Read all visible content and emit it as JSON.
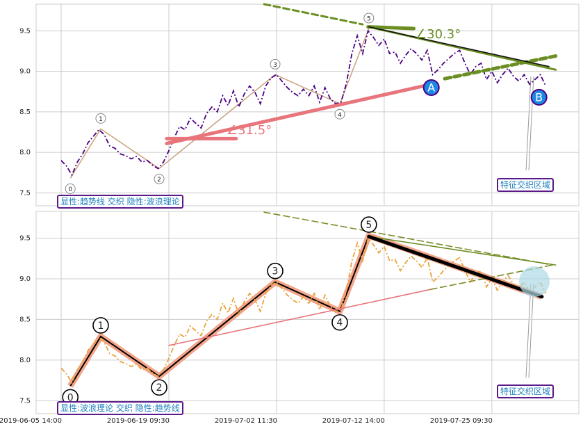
{
  "chart_data": [
    {
      "type": "line",
      "x": [
        0,
        2,
        4,
        6,
        8,
        10,
        12,
        14,
        16,
        18,
        20,
        22,
        24,
        26,
        28,
        30,
        32,
        34,
        36,
        38,
        40,
        42,
        44,
        46,
        48,
        50,
        52,
        54,
        56,
        58,
        60,
        62,
        64,
        66,
        68,
        70,
        72,
        74,
        76,
        78,
        80,
        82,
        84,
        86,
        88,
        90,
        92,
        94,
        96,
        98,
        100,
        102,
        104,
        106,
        108,
        110,
        112,
        114,
        116,
        118,
        120,
        122,
        124,
        126,
        128,
        130,
        132,
        134,
        136,
        138,
        140,
        142,
        144,
        146,
        148,
        150,
        152,
        154,
        156,
        158,
        160,
        162,
        164,
        166,
        168,
        170,
        172,
        174,
        176,
        178,
        180
      ],
      "series": [
        {
          "color": "#4b0082",
          "style": "dashdot",
          "values": [
            7.9,
            7.83,
            7.72,
            7.88,
            7.98,
            8.12,
            8.2,
            8.28,
            8.22,
            8.08,
            8.05,
            7.98,
            7.96,
            7.92,
            7.95,
            7.88,
            7.9,
            7.84,
            7.8,
            7.88,
            8.02,
            8.18,
            8.32,
            8.28,
            8.42,
            8.36,
            8.3,
            8.48,
            8.56,
            8.5,
            8.7,
            8.58,
            8.76,
            8.56,
            8.72,
            8.82,
            8.74,
            8.6,
            8.82,
            8.92,
            8.96,
            8.88,
            8.8,
            8.74,
            8.7,
            8.78,
            8.7,
            8.82,
            8.62,
            8.8,
            8.66,
            8.6,
            8.62,
            8.86,
            9.22,
            9.44,
            9.22,
            9.5,
            9.42,
            9.32,
            9.4,
            9.22,
            9.24,
            9.1,
            9.2,
            9.28,
            9.22,
            9.14,
            9.26,
            8.96,
            9.02,
            9.1,
            9.16,
            9.22,
            9.26,
            9.1,
            8.96,
            9.06,
            9.1,
            8.9,
            9.0,
            8.86,
            8.96,
            9.04,
            8.94,
            8.88,
            8.96,
            8.84,
            8.9,
            8.96,
            8.82
          ]
        }
      ],
      "xlim": [
        -9.3,
        192.3
      ],
      "ylim": [
        7.34,
        9.83
      ],
      "yticks": [
        7.5,
        {
          "value": 8,
          "label": "8.0"
        },
        8.5,
        {
          "value": 9,
          "label": "9.0"
        },
        9.5
      ],
      "grid": true,
      "waves": {
        "x": [
          3.4,
          14.7,
          36.4,
          79.5,
          103.5,
          114.3
        ],
        "values": [
          7.68,
          8.29,
          7.8,
          8.96,
          8.6,
          9.53
        ],
        "labels": [
          "0",
          "1",
          "2",
          "3",
          "4",
          "5"
        ],
        "color": "#c8a27c",
        "bold": false
      },
      "points": [
        {
          "label": "A",
          "x": 137.5,
          "value": 8.8,
          "color": "#1e88e5"
        },
        {
          "label": "B",
          "x": 177.5,
          "value": 8.68,
          "color": "#1e88e5"
        }
      ],
      "trendlines": [
        {
          "x": [
            75.4,
            112
          ],
          "values": [
            9.83,
            9.58
          ],
          "color": "#6b8e23",
          "dash": true,
          "weight": "bold"
        },
        {
          "x": [
            114,
            131
          ],
          "values": [
            9.55,
            9.53
          ],
          "color": "#6b8e23",
          "dash": false,
          "weight": "heavy"
        },
        {
          "x": [
            114.3,
            183.7
          ],
          "values": [
            9.55,
            9.02
          ],
          "color": "#6b8e23",
          "dash": false,
          "weight": "bold"
        },
        {
          "x": [
            142.5,
            183.7
          ],
          "values": [
            8.91,
            9.19
          ],
          "color": "#6b8e23",
          "dash": true,
          "weight": "heavy"
        },
        {
          "x": [
            39.2,
            137.3
          ],
          "values": [
            8.11,
            8.84
          ],
          "color": "#e8747c",
          "dash": false,
          "weight": "heavy"
        },
        {
          "x": [
            39.2,
            65
          ],
          "values": [
            8.17,
            8.17
          ],
          "color": "#e8747c",
          "dash": false,
          "weight": "heavy"
        },
        {
          "x": [
            114.3,
            181.2
          ],
          "values": [
            9.55,
            9.06
          ],
          "color": "#111111",
          "dash": false,
          "weight": "normal"
        }
      ],
      "angle_labels": [
        {
          "text": "∠30.3°",
          "color": "#6b8e23"
        },
        {
          "text": "∠31.5°",
          "color": "#e8747c"
        }
      ],
      "note": "显性:趋势线 交织 隐性:波浪理论",
      "region_label": "特征交织区域"
    },
    {
      "type": "line",
      "x": [
        0,
        2,
        4,
        6,
        8,
        10,
        12,
        14,
        16,
        18,
        20,
        22,
        24,
        26,
        28,
        30,
        32,
        34,
        36,
        38,
        40,
        42,
        44,
        46,
        48,
        50,
        52,
        54,
        56,
        58,
        60,
        62,
        64,
        66,
        68,
        70,
        72,
        74,
        76,
        78,
        80,
        82,
        84,
        86,
        88,
        90,
        92,
        94,
        96,
        98,
        100,
        102,
        104,
        106,
        108,
        110,
        112,
        114,
        116,
        118,
        120,
        122,
        124,
        126,
        128,
        130,
        132,
        134,
        136,
        138,
        140,
        142,
        144,
        146,
        148,
        150,
        152,
        154,
        156,
        158,
        160,
        162,
        164,
        166,
        168,
        170,
        172,
        174,
        176,
        178,
        180
      ],
      "series": [
        {
          "color": "#e8a33c",
          "style": "dashdot",
          "values": [
            7.9,
            7.83,
            7.72,
            7.88,
            7.98,
            8.12,
            8.2,
            8.28,
            8.22,
            8.08,
            8.05,
            7.98,
            7.96,
            7.92,
            7.95,
            7.88,
            7.9,
            7.84,
            7.8,
            7.88,
            8.02,
            8.18,
            8.32,
            8.28,
            8.42,
            8.36,
            8.3,
            8.48,
            8.56,
            8.5,
            8.7,
            8.58,
            8.76,
            8.56,
            8.72,
            8.82,
            8.74,
            8.6,
            8.82,
            8.92,
            8.96,
            8.88,
            8.8,
            8.74,
            8.7,
            8.78,
            8.7,
            8.82,
            8.62,
            8.8,
            8.66,
            8.6,
            8.62,
            8.86,
            9.22,
            9.44,
            9.22,
            9.5,
            9.42,
            9.32,
            9.4,
            9.22,
            9.24,
            9.1,
            9.2,
            9.28,
            9.22,
            9.14,
            9.26,
            8.96,
            9.02,
            9.1,
            9.16,
            9.22,
            9.26,
            9.1,
            8.96,
            9.06,
            9.1,
            8.9,
            9.0,
            8.86,
            8.96,
            9.04,
            8.94,
            8.88,
            8.96,
            8.84,
            8.9,
            8.96,
            8.82
          ]
        }
      ],
      "xlim": [
        -9.3,
        192.3
      ],
      "ylim": [
        7.34,
        9.83
      ],
      "xticks": [
        {
          "value": 0,
          "label": "2019-06-05 14:00"
        },
        {
          "value": 40,
          "label": "2019-06-19 09:30"
        },
        {
          "value": 80,
          "label": "2019-07-02 11:30"
        },
        {
          "value": 120,
          "label": "2019-07-12 14:00"
        },
        {
          "value": 160,
          "label": "2019-07-25 09:30"
        }
      ],
      "yticks": [
        7.5,
        {
          "value": 8,
          "label": "8.0"
        },
        8.5,
        {
          "value": 9,
          "label": "9.0"
        },
        9.5
      ],
      "grid": true,
      "waves": {
        "x": [
          3.4,
          14.7,
          36.4,
          79.5,
          103.5,
          114.3,
          178.6
        ],
        "values": [
          7.68,
          8.29,
          7.8,
          8.96,
          8.6,
          9.53,
          8.78
        ],
        "labels": [
          "0",
          "1",
          "2",
          "3",
          "4",
          "5"
        ],
        "color": "#f4a58a",
        "bold": true
      },
      "trendlines": [
        {
          "x": [
            75.4,
            182.5
          ],
          "values": [
            9.82,
            9.17
          ],
          "color": "#7a8f2a",
          "dash": true,
          "weight": "normal"
        },
        {
          "x": [
            114.3,
            183.7
          ],
          "values": [
            9.52,
            9.17
          ],
          "color": "#6b8e23",
          "dash": false,
          "weight": "normal"
        },
        {
          "x": [
            40,
            137.3
          ],
          "values": [
            8.18,
            8.87
          ],
          "color": "#e8747c",
          "dash": false,
          "weight": "normal"
        },
        {
          "x": [
            137.3,
            182.5
          ],
          "values": [
            8.87,
            9.17
          ],
          "color": "#7a8f2a",
          "dash": true,
          "weight": "normal"
        },
        {
          "x": [
            114.3,
            178.6
          ],
          "values": [
            9.52,
            8.78
          ],
          "color": "#000000",
          "dash": false,
          "weight": "heavy"
        }
      ],
      "note": "显性:波浪理论 交织 隐性:趋势线",
      "region_label": "特征交织区域"
    }
  ]
}
